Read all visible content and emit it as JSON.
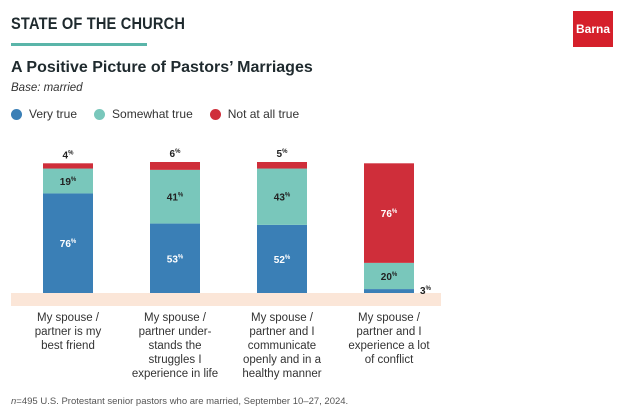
{
  "header": {
    "title": "STATE OF THE CHURCH",
    "brand": "Barna"
  },
  "colors": {
    "very_true": "#3a7fb6",
    "somewhat_true": "#79c7bb",
    "not_at_all_true": "#cf2e3a",
    "accent_rule": "#5ab5a9",
    "baseline_band": "#fbe6d8",
    "brand_red": "#d5202b"
  },
  "footnote": {
    "n": "n",
    "text": "=495 U.S. Protestant senior pastors who are married, September 10–27, 2024."
  },
  "chart_data": {
    "type": "bar",
    "stacked": true,
    "title": "A Positive Picture of Pastors’ Marriages",
    "subtitle": "Base: married",
    "legend_position": "top-left",
    "unit_suffix": "%",
    "ylim": [
      0,
      100
    ],
    "categories": [
      [
        "My spouse /",
        "partner is my",
        "best friend"
      ],
      [
        "My spouse /",
        "partner under-",
        "stands the",
        "struggles I",
        "experience in life"
      ],
      [
        "My spouse /",
        "partner and I",
        "communicate",
        "openly and in a",
        "healthy manner"
      ],
      [
        "My spouse /",
        "partner and I",
        "experience a lot",
        "of conflict"
      ]
    ],
    "series": [
      {
        "name": "Very true",
        "color": "#3a7fb6",
        "values": [
          76,
          53,
          52,
          3
        ]
      },
      {
        "name": "Somewhat true",
        "color": "#79c7bb",
        "values": [
          19,
          41,
          43,
          20
        ]
      },
      {
        "name": "Not at all true",
        "color": "#cf2e3a",
        "values": [
          4,
          6,
          5,
          76
        ]
      }
    ]
  }
}
